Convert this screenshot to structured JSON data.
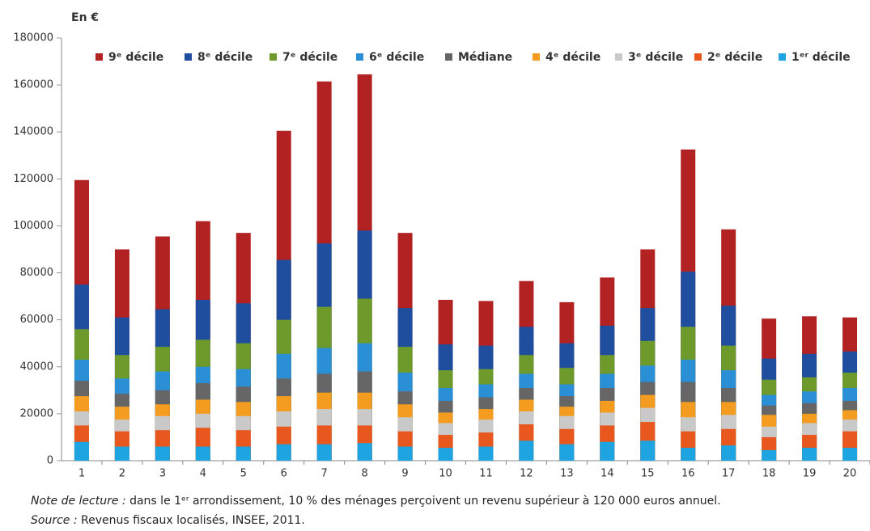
{
  "chart_data": {
    "type": "bar",
    "y_label": "En €",
    "categories": [
      "1",
      "2",
      "3",
      "4",
      "5",
      "6",
      "7",
      "8",
      "9",
      "10",
      "11",
      "12",
      "13",
      "14",
      "15",
      "16",
      "17",
      "18",
      "19",
      "20"
    ],
    "series": [
      {
        "name": "9ᵉ décile",
        "color": "#b22222",
        "values": [
          119500,
          90000,
          95500,
          102000,
          97000,
          140500,
          161500,
          164500,
          97000,
          68500,
          68000,
          76500,
          67500,
          78000,
          90000,
          132500,
          98500,
          60500,
          61500,
          61000
        ]
      },
      {
        "name": "8ᵉ décile",
        "color": "#1f4e9e",
        "values": [
          75000,
          61000,
          64500,
          68500,
          67000,
          85500,
          92500,
          98000,
          65000,
          49500,
          49000,
          57000,
          50000,
          57500,
          65000,
          80500,
          66000,
          43500,
          45500,
          46500
        ]
      },
      {
        "name": "7ᵉ décile",
        "color": "#6e9a2b",
        "values": [
          56000,
          45000,
          48500,
          51500,
          50000,
          60000,
          65500,
          69000,
          48500,
          38500,
          39000,
          45000,
          39500,
          45000,
          51000,
          57000,
          49000,
          34500,
          35500,
          37500
        ]
      },
      {
        "name": "6ᵉ décile",
        "color": "#2b8fd5",
        "values": [
          43000,
          35000,
          38000,
          40000,
          39000,
          45500,
          48000,
          50000,
          37500,
          31000,
          32500,
          37000,
          32500,
          37000,
          40500,
          43000,
          38500,
          28000,
          29500,
          31000
        ]
      },
      {
        "name": "Médiane",
        "color": "#666666",
        "values": [
          34000,
          28500,
          30000,
          33000,
          31500,
          35000,
          37000,
          38000,
          29500,
          25500,
          27000,
          31000,
          27500,
          31000,
          33500,
          33500,
          31000,
          23500,
          24500,
          25500
        ]
      },
      {
        "name": "4ᵉ décile",
        "color": "#f39c1f",
        "values": [
          27500,
          23000,
          24000,
          26000,
          25000,
          27500,
          29000,
          29000,
          24000,
          20500,
          22000,
          26000,
          23000,
          25500,
          28000,
          25000,
          25000,
          19500,
          20000,
          21500
        ]
      },
      {
        "name": "3ᵉ décile",
        "color": "#c9c9c9",
        "values": [
          21000,
          17500,
          19000,
          20000,
          19000,
          21000,
          22000,
          22000,
          18500,
          16000,
          17500,
          21000,
          19000,
          20500,
          22500,
          18500,
          19500,
          14500,
          16000,
          17500
        ]
      },
      {
        "name": "2ᵉ décile",
        "color": "#e8571e",
        "values": [
          15000,
          12500,
          13000,
          14000,
          13000,
          14500,
          15000,
          15000,
          12500,
          11000,
          12000,
          15500,
          13500,
          15000,
          16500,
          12500,
          13500,
          10000,
          11000,
          12500
        ]
      },
      {
        "name": "1ᵉʳ décile",
        "color": "#1ea4e0",
        "values": [
          8000,
          6000,
          6000,
          6000,
          6000,
          7000,
          7000,
          7500,
          6000,
          5500,
          6000,
          8500,
          7000,
          8000,
          8500,
          5500,
          6500,
          4500,
          5500,
          5500
        ]
      }
    ],
    "ylim": [
      0,
      180000
    ],
    "yticks": [
      0,
      20000,
      40000,
      60000,
      80000,
      100000,
      120000,
      140000,
      160000,
      180000
    ],
    "grid": false,
    "legend": "top",
    "note_label": "Note de lecture :",
    "note_text": "dans le 1ᵉʳ arrondissement, 10 % des ménages perçoivent un revenu supérieur à 120 000 euros annuel.",
    "source_label": "Source :",
    "source_text": "Revenus fiscaux localisés, INSEE, 2011."
  }
}
